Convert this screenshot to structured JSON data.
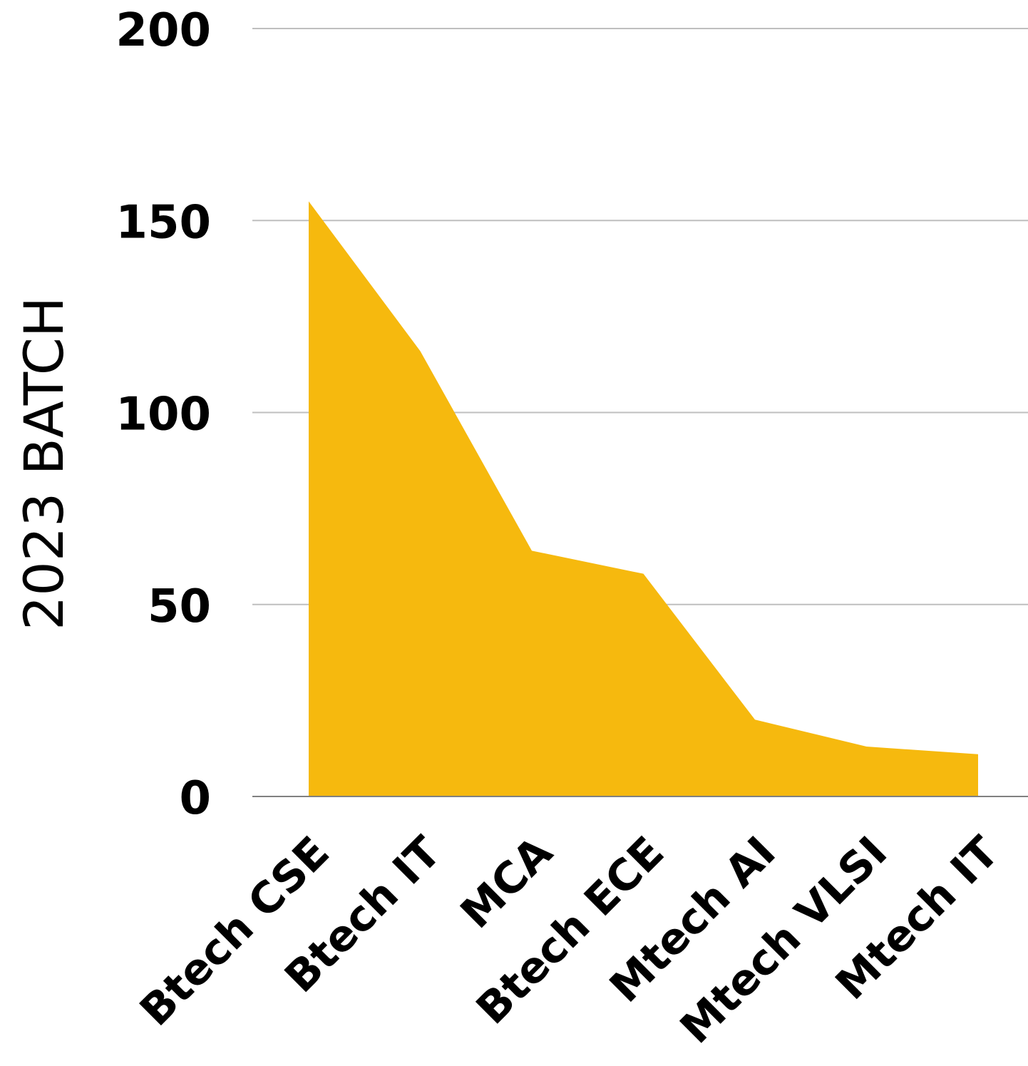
{
  "chart_data": {
    "type": "area",
    "title": "",
    "xlabel": "",
    "ylabel": "2023 BATCH",
    "categories": [
      "Btech CSE",
      "Btech IT",
      "MCA",
      "Btech ECE",
      "Mtech AI",
      "Mtech VLSI",
      "Mtech IT"
    ],
    "series": [
      {
        "values": [
          155,
          116,
          64,
          58,
          20,
          13,
          11
        ]
      }
    ],
    "ylim": [
      0,
      200
    ],
    "yticks": [
      0,
      50,
      100,
      150,
      200
    ],
    "grid": true,
    "legend": "none",
    "colors": {
      "area": "#F6B90E",
      "grid": "#BFBFBF",
      "axis": "#808080",
      "text": "#000000"
    }
  }
}
